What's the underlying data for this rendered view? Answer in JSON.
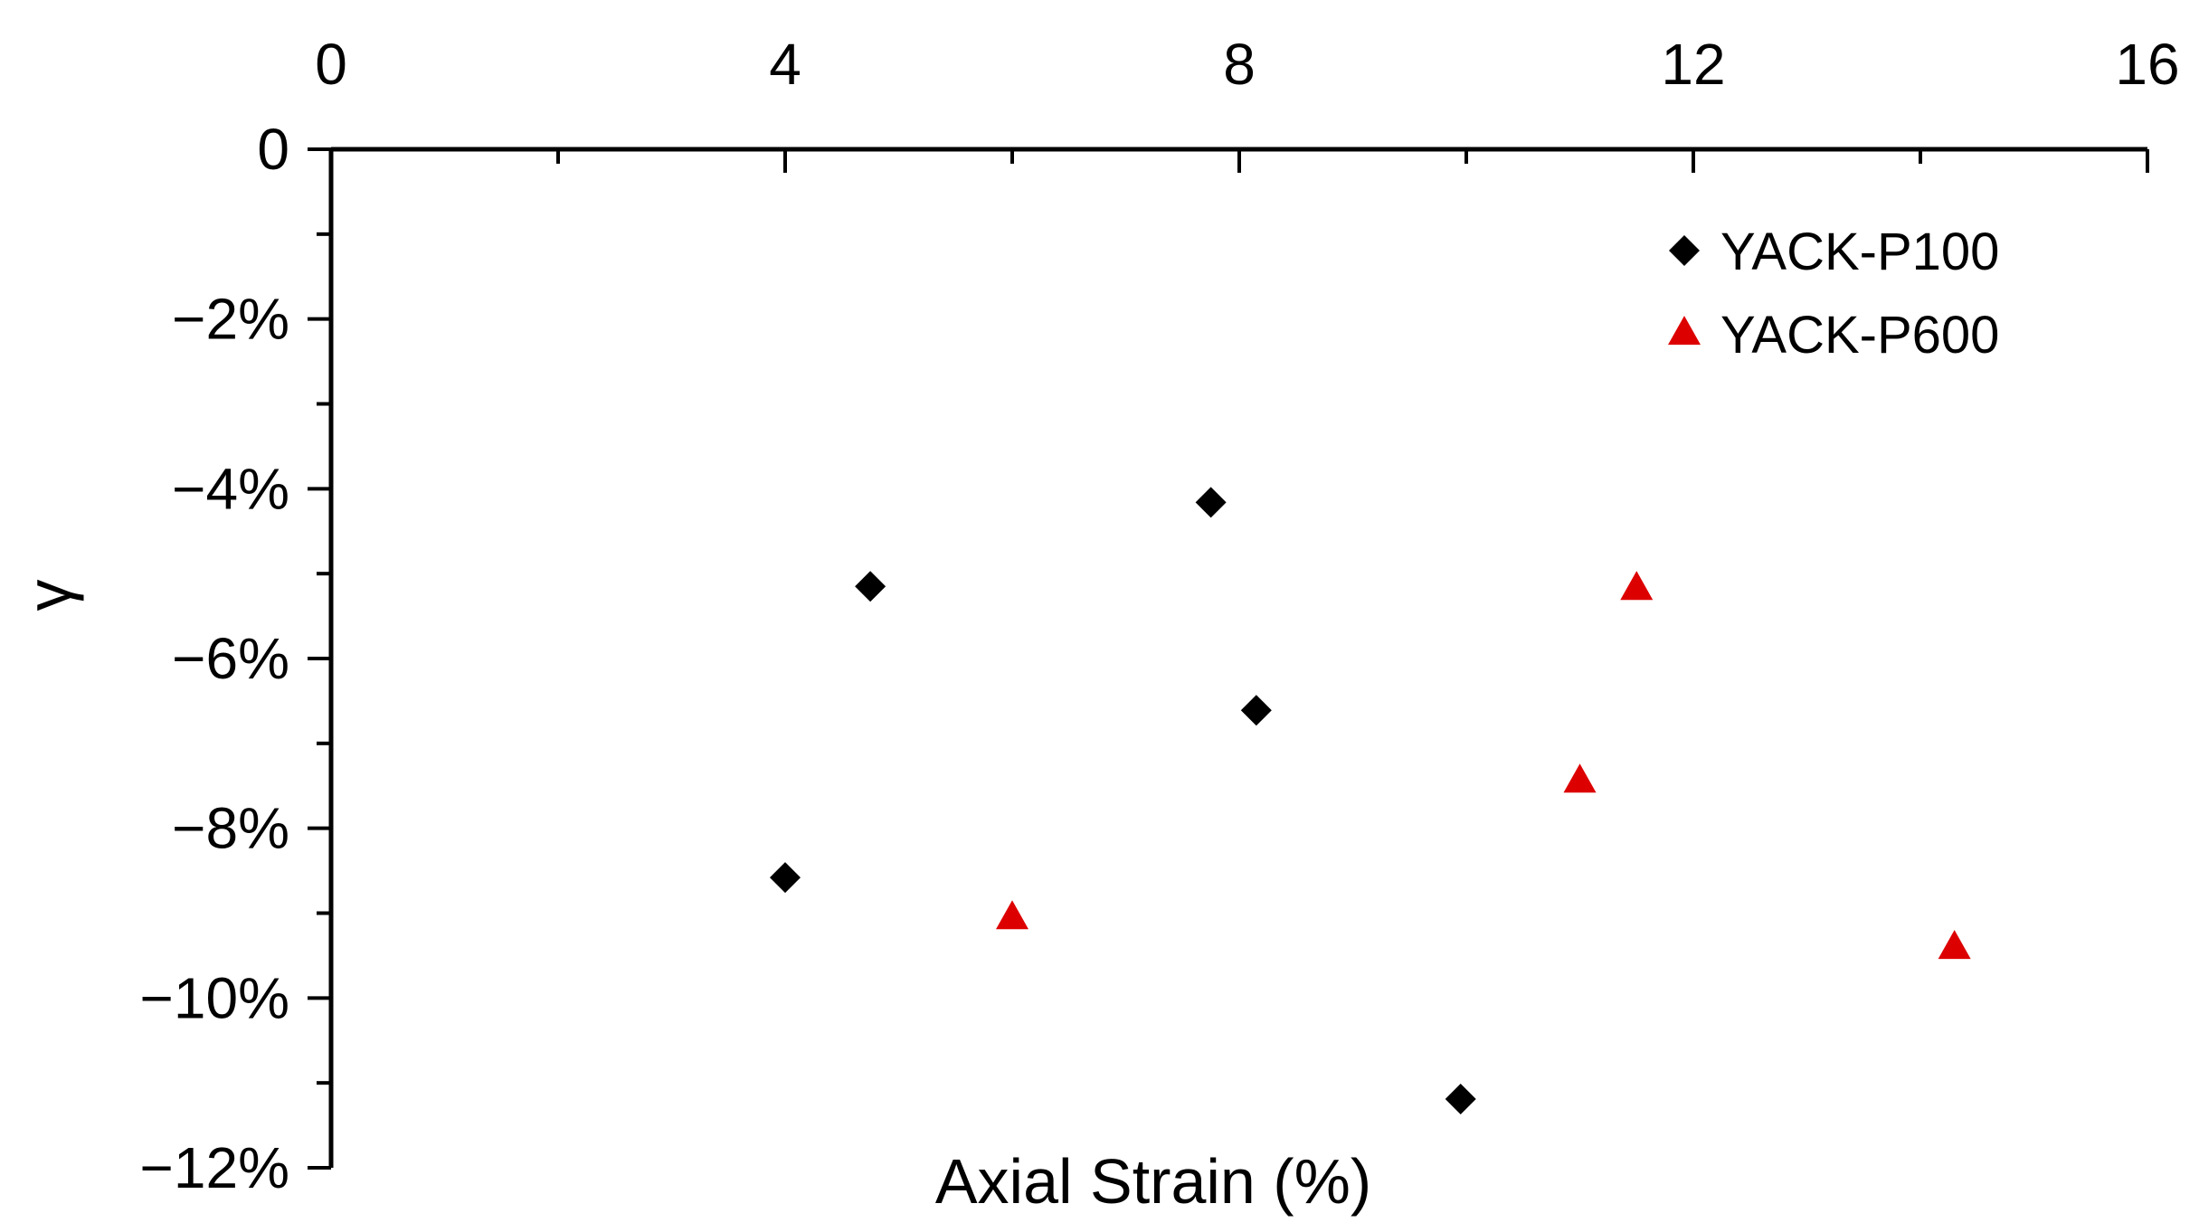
{
  "chart_data": {
    "type": "scatter",
    "title": "",
    "xlabel": "Axial Strain (%)",
    "ylabel": "γ",
    "xlim": [
      0,
      16
    ],
    "ylim": [
      -0.12,
      0
    ],
    "x_axis_position": "top",
    "x_ticks": [
      {
        "value": 0,
        "label": "0"
      },
      {
        "value": 4,
        "label": "4"
      },
      {
        "value": 8,
        "label": "8"
      },
      {
        "value": 12,
        "label": "12"
      },
      {
        "value": 16,
        "label": "16"
      }
    ],
    "y_ticks": [
      {
        "value": 0,
        "label": "0"
      },
      {
        "value": -0.02,
        "label": "−2%"
      },
      {
        "value": -0.04,
        "label": "−4%"
      },
      {
        "value": -0.06,
        "label": "−6%"
      },
      {
        "value": -0.08,
        "label": "−8%"
      },
      {
        "value": -0.1,
        "label": "−10%"
      },
      {
        "value": -0.12,
        "label": "−12%"
      }
    ],
    "grid": false,
    "legend_position": "top-right",
    "series": [
      {
        "name": "YACK-P100",
        "marker": "diamond",
        "color": "#000000",
        "points": [
          {
            "x": 4.0,
            "y": -0.0858
          },
          {
            "x": 4.75,
            "y": -0.0515
          },
          {
            "x": 7.75,
            "y": -0.0416
          },
          {
            "x": 8.15,
            "y": -0.0661
          },
          {
            "x": 9.95,
            "y": -0.1119
          }
        ]
      },
      {
        "name": "YACK-P600",
        "marker": "triangle",
        "color": "#dd0000",
        "points": [
          {
            "x": 6.0,
            "y": -0.0906
          },
          {
            "x": 11.0,
            "y": -0.0745
          },
          {
            "x": 11.5,
            "y": -0.0518
          },
          {
            "x": 14.3,
            "y": -0.0941
          }
        ]
      }
    ]
  }
}
